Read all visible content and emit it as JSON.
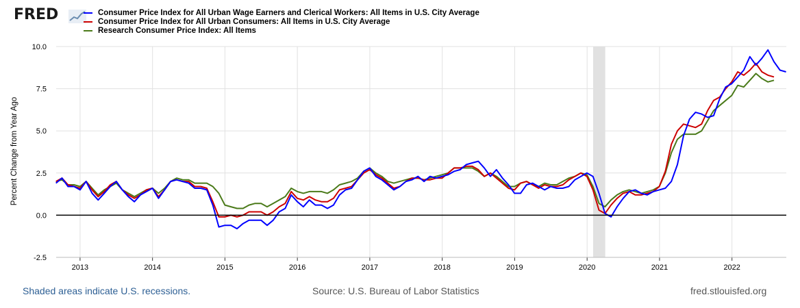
{
  "brand": {
    "logo_text": "FRED"
  },
  "chart_data": {
    "type": "line",
    "ylabel": "Percent Change from Year Ago",
    "xlabel": "",
    "ylim": [
      -2.5,
      10.0
    ],
    "yticks": [
      -2.5,
      0.0,
      2.5,
      5.0,
      7.5,
      10.0
    ],
    "ytick_labels": [
      "-2.5",
      "0.0",
      "2.5",
      "5.0",
      "7.5",
      "10.0"
    ],
    "xticks": [
      2013,
      2014,
      2015,
      2016,
      2017,
      2018,
      2019,
      2020,
      2021,
      2022
    ],
    "xtick_labels": [
      "2013",
      "2014",
      "2015",
      "2016",
      "2017",
      "2018",
      "2019",
      "2020",
      "2021",
      "2022"
    ],
    "xlim": [
      2012.67,
      2022.75
    ],
    "grid": true,
    "zero_line": true,
    "recessions": [
      {
        "start": 2020.083,
        "end": 2020.25
      }
    ],
    "x_start": 2012.667,
    "x_step": 0.0833,
    "series": [
      {
        "name": "Consumer Price Index for All Urban Wage Earners and Clerical Workers: All Items in U.S. City Average",
        "color": "#0000ff",
        "values": [
          1.9,
          2.2,
          1.7,
          1.7,
          1.5,
          2.0,
          1.3,
          0.9,
          1.3,
          1.7,
          2.0,
          1.5,
          1.1,
          0.8,
          1.2,
          1.4,
          1.6,
          1.0,
          1.5,
          2.0,
          2.1,
          2.0,
          1.9,
          1.6,
          1.6,
          1.5,
          0.6,
          -0.7,
          -0.6,
          -0.6,
          -0.8,
          -0.5,
          -0.3,
          -0.3,
          -0.3,
          -0.6,
          -0.3,
          0.2,
          0.4,
          1.2,
          0.8,
          0.5,
          0.9,
          0.6,
          0.6,
          0.4,
          0.6,
          1.2,
          1.5,
          1.6,
          2.1,
          2.6,
          2.8,
          2.3,
          2.1,
          1.8,
          1.5,
          1.7,
          2.0,
          2.1,
          2.3,
          2.0,
          2.3,
          2.2,
          2.3,
          2.4,
          2.6,
          2.7,
          3.0,
          3.1,
          3.2,
          2.8,
          2.3,
          2.7,
          2.2,
          1.8,
          1.3,
          1.3,
          1.8,
          1.9,
          1.7,
          1.5,
          1.7,
          1.6,
          1.6,
          1.7,
          2.1,
          2.3,
          2.5,
          2.3,
          1.3,
          0.1,
          -0.1,
          0.5,
          1.0,
          1.4,
          1.5,
          1.3,
          1.2,
          1.4,
          1.5,
          1.6,
          2.0,
          3.0,
          4.7,
          5.7,
          6.1,
          6.0,
          5.8,
          5.9,
          6.9,
          7.6,
          7.8,
          8.2,
          8.6,
          9.4,
          8.9,
          9.3,
          9.8,
          9.1,
          8.6,
          8.5
        ]
      },
      {
        "name": "Consumer Price Index for All Urban Consumers: All Items in U.S. City Average",
        "color": "#cc0000",
        "values": [
          2.0,
          2.2,
          1.8,
          1.7,
          1.6,
          2.0,
          1.5,
          1.1,
          1.4,
          1.8,
          2.0,
          1.5,
          1.2,
          1.0,
          1.2,
          1.5,
          1.6,
          1.1,
          1.5,
          2.0,
          2.1,
          2.0,
          2.0,
          1.7,
          1.7,
          1.6,
          0.8,
          -0.1,
          -0.1,
          0.0,
          -0.1,
          0.0,
          0.2,
          0.2,
          0.2,
          0.0,
          0.2,
          0.5,
          0.7,
          1.4,
          1.0,
          0.9,
          1.1,
          0.9,
          0.8,
          0.8,
          1.0,
          1.5,
          1.6,
          1.7,
          2.1,
          2.5,
          2.7,
          2.4,
          2.2,
          1.9,
          1.6,
          1.7,
          2.0,
          2.2,
          2.2,
          2.1,
          2.1,
          2.2,
          2.2,
          2.5,
          2.8,
          2.8,
          2.9,
          2.9,
          2.7,
          2.3,
          2.5,
          2.2,
          1.9,
          1.6,
          1.5,
          1.9,
          2.0,
          1.8,
          1.6,
          1.8,
          1.7,
          1.7,
          1.8,
          2.1,
          2.3,
          2.5,
          2.3,
          1.5,
          0.3,
          0.1,
          0.6,
          1.0,
          1.3,
          1.4,
          1.2,
          1.2,
          1.3,
          1.4,
          1.7,
          2.6,
          4.2,
          5.0,
          5.4,
          5.3,
          5.2,
          5.4,
          6.2,
          6.8,
          7.0,
          7.5,
          7.9,
          8.5,
          8.3,
          8.6,
          9.0,
          8.5,
          8.3,
          8.2
        ]
      },
      {
        "name": "Research Consumer Price Index: All Items",
        "color": "#4a7a19",
        "values": [
          2.0,
          2.1,
          1.8,
          1.8,
          1.7,
          2.0,
          1.6,
          1.2,
          1.5,
          1.7,
          1.9,
          1.5,
          1.3,
          1.1,
          1.3,
          1.5,
          1.6,
          1.3,
          1.6,
          2.0,
          2.2,
          2.1,
          2.1,
          1.9,
          1.9,
          1.9,
          1.7,
          1.3,
          0.6,
          0.5,
          0.4,
          0.4,
          0.6,
          0.7,
          0.7,
          0.5,
          0.7,
          0.9,
          1.1,
          1.6,
          1.4,
          1.3,
          1.4,
          1.4,
          1.4,
          1.3,
          1.5,
          1.8,
          1.9,
          2.0,
          2.2,
          2.6,
          2.8,
          2.5,
          2.3,
          2.0,
          1.9,
          2.0,
          2.1,
          2.2,
          2.2,
          2.1,
          2.2,
          2.3,
          2.4,
          2.5,
          2.8,
          2.8,
          2.8,
          2.8,
          2.6,
          2.3,
          2.5,
          2.3,
          2.0,
          1.7,
          1.7,
          1.9,
          2.0,
          1.8,
          1.7,
          1.9,
          1.8,
          1.8,
          2.0,
          2.2,
          2.3,
          2.5,
          2.4,
          1.7,
          0.7,
          0.5,
          0.9,
          1.2,
          1.4,
          1.5,
          1.4,
          1.3,
          1.4,
          1.5,
          1.7,
          2.5,
          3.7,
          4.5,
          4.8,
          4.8,
          4.8,
          5.0,
          5.6,
          6.2,
          6.5,
          6.8,
          7.1,
          7.7,
          7.6,
          8.0,
          8.4,
          8.1,
          7.9,
          8.0
        ]
      }
    ]
  },
  "footer": {
    "recession_note": "Shaded areas indicate U.S. recessions.",
    "source": "Source: U.S. Bureau of Labor Statistics",
    "site": "fred.stlouisfed.org"
  }
}
